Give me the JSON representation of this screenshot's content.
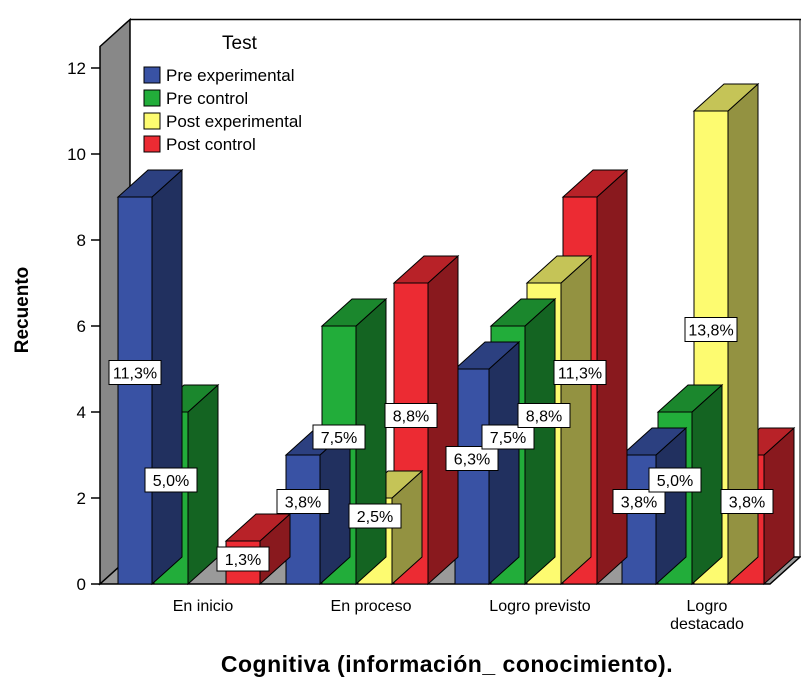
{
  "chart_data": {
    "type": "bar",
    "style": "3d-clustered",
    "categories": [
      "En inicio",
      "En proceso",
      "Logro previsto",
      "Logro destacado"
    ],
    "category_lines": [
      [
        "En inicio"
      ],
      [
        "En proceso"
      ],
      [
        "Logro previsto"
      ],
      [
        "Logro",
        "destacado"
      ]
    ],
    "series": [
      {
        "name": "Pre experimental",
        "color": "#3952a4",
        "values": [
          9,
          3,
          5,
          3
        ],
        "labels": [
          "11,3%",
          "3,8%",
          "6,3%",
          "3,8%"
        ]
      },
      {
        "name": "Pre control",
        "color": "#22ad3a",
        "values": [
          4,
          6,
          6,
          4
        ],
        "labels": [
          "5,0%",
          "7,5%",
          "7,5%",
          "5,0%"
        ]
      },
      {
        "name": "Post experimental",
        "color": "#fdfb70",
        "values": [
          0,
          2,
          7,
          11
        ],
        "labels": [
          "",
          "2,5%",
          "8,8%",
          "13,8%"
        ]
      },
      {
        "name": "Post control",
        "color": "#ec2b33",
        "values": [
          1,
          7,
          9,
          3
        ],
        "labels": [
          "1,3%",
          "8,8%",
          "11,3%",
          "3,8%"
        ]
      }
    ],
    "xlabel": "Cognitiva (información_ conocimiento).",
    "ylabel": "Recuento",
    "ylim": [
      0,
      12
    ],
    "yticks": [
      "0",
      "2",
      "4",
      "6",
      "8",
      "10",
      "12"
    ],
    "legend_title": "Test",
    "legend_position": "top-left",
    "grid": false
  }
}
